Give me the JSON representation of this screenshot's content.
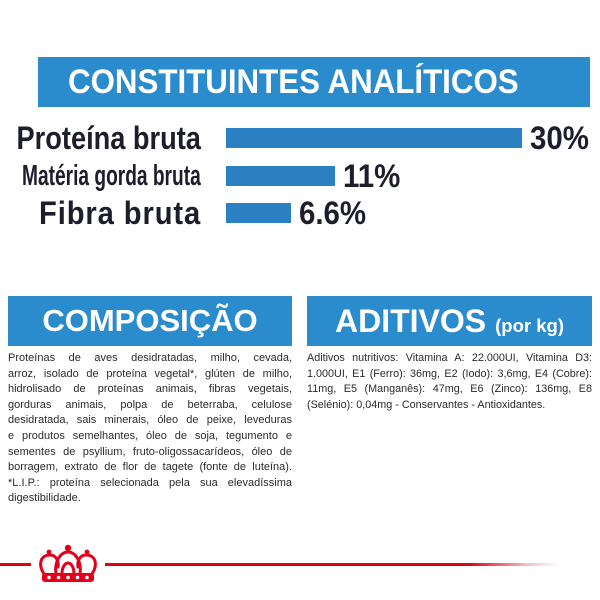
{
  "colors": {
    "banner": "#2a8ccd",
    "bar": "#2b7fc3",
    "text": "#1d1d2b",
    "body_text": "#2b2b2b",
    "brand_red": "#e2001a"
  },
  "chart_data": {
    "type": "bar",
    "title": "CONSTITUINTES ANALÍTICOS",
    "categories": [
      "Proteína bruta",
      "Matéria gorda bruta",
      "Fibra bruta"
    ],
    "values": [
      30,
      11,
      6.6
    ],
    "value_labels": [
      "30%",
      "11%",
      "6.6%"
    ],
    "grid": false
  },
  "composition": {
    "title": "COMPOSIÇÃO",
    "lines": [
      "Proteínas de aves desidratadas, milho, cevada,",
      "arroz, isolado de proteína vegetal*, glúten de milho,",
      "hidrolisado de proteínas animais, fibras vegetais,",
      "gorduras animais, polpa de beterraba, celulose",
      "desidratada, sais minerais, óleo de peixe, leveduras",
      "e produtos semelhantes, óleo de soja, tegumento e",
      "sementes de psyllium, fruto-oligossacarídeos, óleo de",
      "borragem, extrato de flor de tagete (fonte de luteína).",
      "*L.I.P.: proteína selecionada pela sua elevadíssima",
      "digestibilidade."
    ]
  },
  "additives": {
    "title": "ADITIVOS",
    "title_suffix": "(por kg)",
    "lines": [
      "Aditivos nutritivos: Vitamina A: 22.000UI, Vitamina D3:",
      "1.000UI, E1 (Ferro): 36mg, E2 (Iodo): 3,6mg, E4 (Cobre):",
      "11mg, E5 (Manganês): 47mg, E6 (Zinco): 136mg, E8",
      "(Selénio): 0,04mg - Conservantes - Antioxidantes."
    ]
  },
  "logo": {
    "icon": "royal-canin-crown-icon"
  }
}
